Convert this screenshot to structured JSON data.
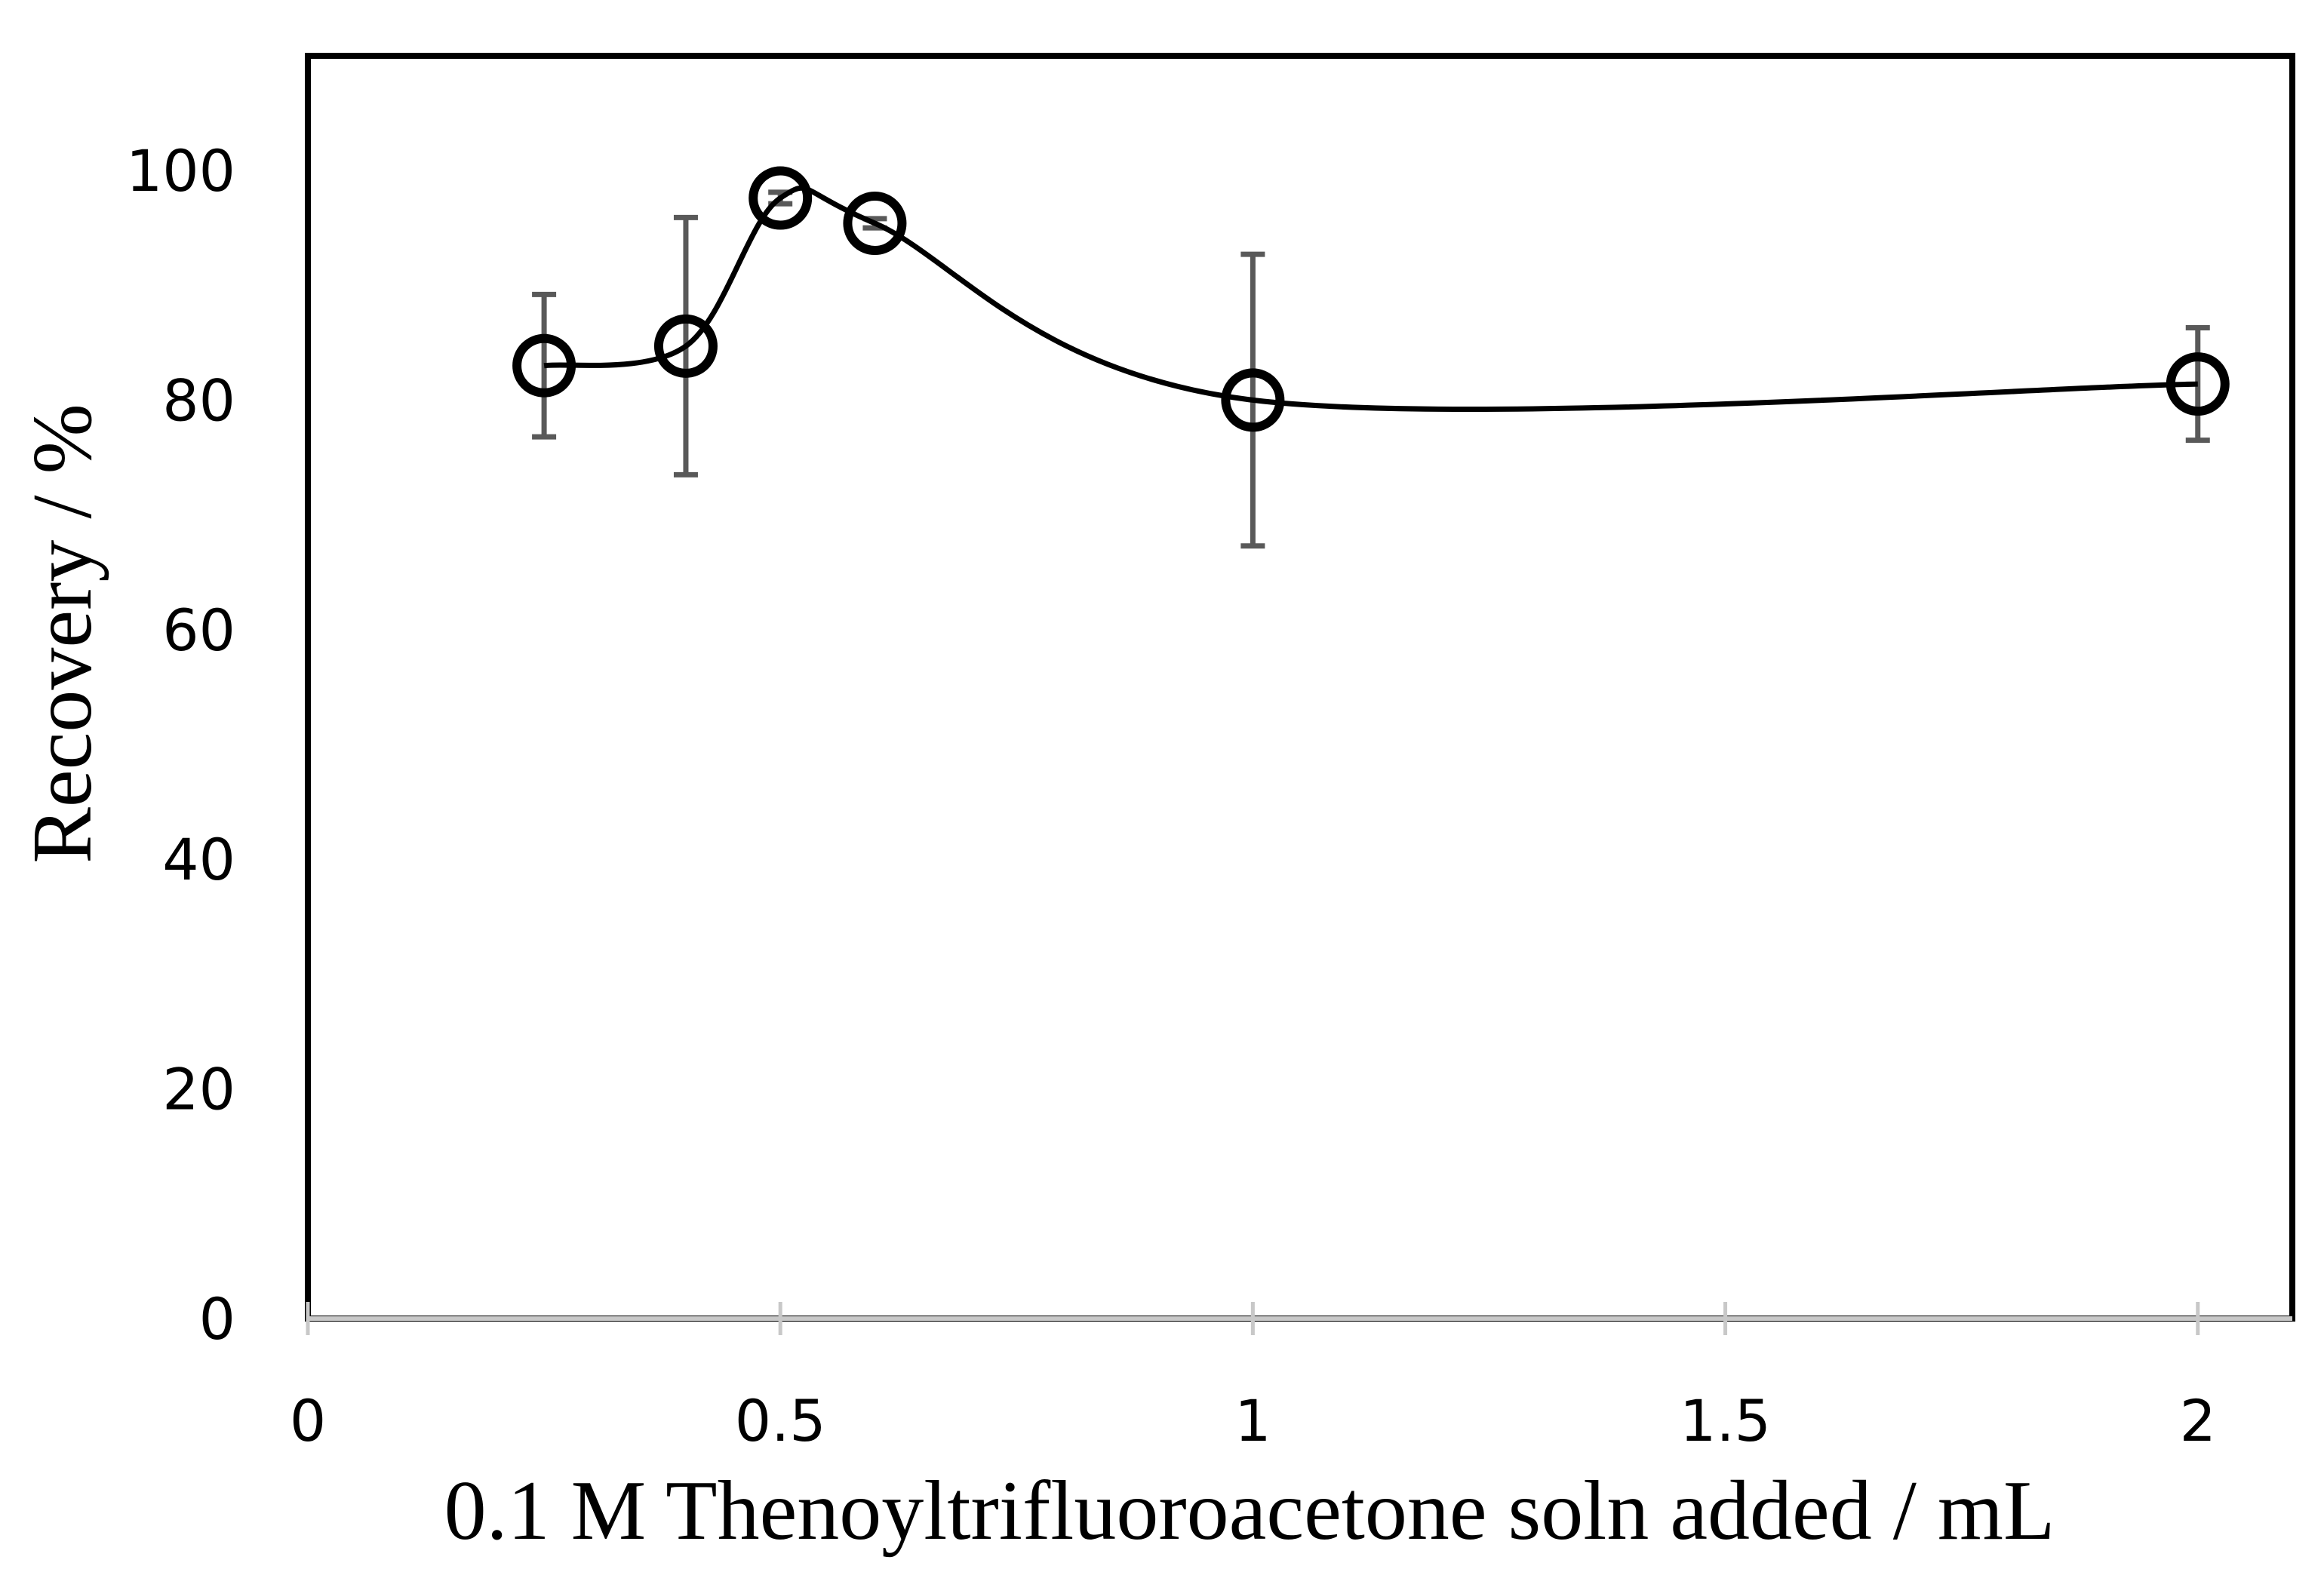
{
  "chart_data": {
    "type": "scatter",
    "title": "",
    "xlabel": "0.1 M Thenoyltrifluoroacetone soln added / mL",
    "ylabel": "Recovery / %",
    "xlim": [
      0,
      2.1
    ],
    "ylim": [
      0,
      110
    ],
    "x_ticks": [
      0,
      0.5,
      1,
      1.5,
      2
    ],
    "x_tick_labels": [
      "0",
      "0.5",
      "1",
      "1.5",
      "2"
    ],
    "y_ticks": [
      0,
      20,
      40,
      60,
      80,
      100
    ],
    "y_tick_labels": [
      "0",
      "20",
      "40",
      "60",
      "80",
      "100"
    ],
    "grid": false,
    "legend": "none",
    "series": [
      {
        "name": "Recovery",
        "marker": "open-circle",
        "line": "smooth",
        "color": "#000000",
        "error_bar_color": "#595959",
        "x": [
          0.25,
          0.4,
          0.5,
          0.6,
          1,
          2
        ],
        "y": [
          83,
          84.7,
          97.6,
          95.4,
          80,
          81.4
        ],
        "y_err": [
          6.2,
          11.2,
          0.5,
          0.4,
          12.7,
          4.9
        ]
      }
    ]
  }
}
